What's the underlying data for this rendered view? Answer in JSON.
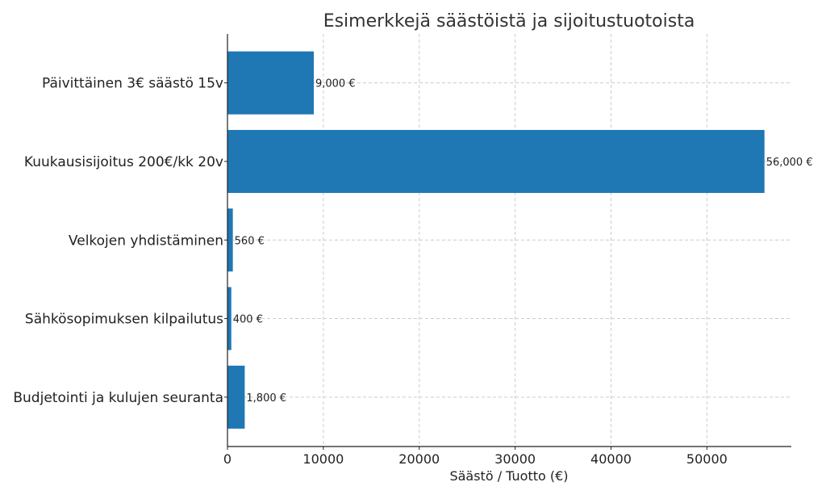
{
  "chart_data": {
    "type": "bar",
    "orientation": "horizontal",
    "title": "Esimerkkejä säästöistä ja sijoitustuotoista",
    "xlabel": "Säästö / Tuotto (€)",
    "ylabel": "",
    "categories": [
      "Päivittäinen 3€ säästö 15v",
      "Kuukausisijoitus 200€/kk 20v",
      "Velkojen yhdistäminen",
      "Sähkösopimuksen kilpailutus",
      "Budjetointi ja kulujen seuranta"
    ],
    "values": [
      9000,
      56000,
      560,
      400,
      1800
    ],
    "data_labels": [
      "9,000 €",
      "56,000 €",
      "560 €",
      "400 €",
      "1,800 €"
    ],
    "xlim": [
      0,
      58800
    ],
    "xticks": [
      0,
      10000,
      20000,
      30000,
      40000,
      50000
    ],
    "xtick_labels": [
      "0",
      "10000",
      "20000",
      "30000",
      "40000",
      "50000"
    ],
    "grid": true,
    "bar_color": "#1f77b4"
  }
}
